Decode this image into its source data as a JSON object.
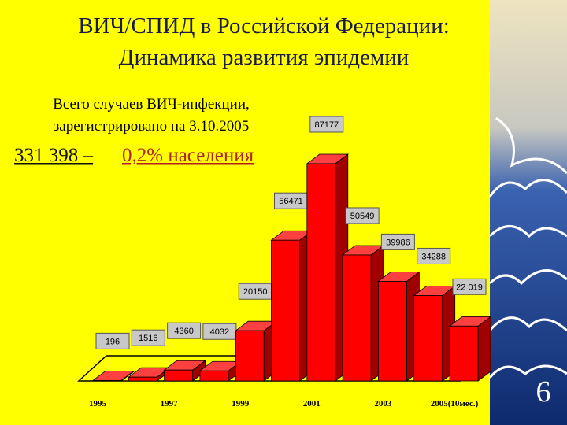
{
  "title_lines": [
    "ВИЧ/СПИД в Российской Федерации:",
    "Динамика развития эпидемии"
  ],
  "note_lines": [
    "Всего случаев ВИЧ-инфекции,",
    "зарегистрировано на 3.10.2005"
  ],
  "total": "331 398 –",
  "share": "0,2% населения",
  "slide_number": "6",
  "chart_data": {
    "type": "bar",
    "categories": [
      "1995",
      null,
      "1997",
      null,
      "1999",
      null,
      "2001",
      null,
      "2003",
      null,
      "2005(10мес.)"
    ],
    "values": [
      196,
      1516,
      4360,
      4032,
      20150,
      56471,
      87177,
      50549,
      39986,
      34288,
      22019
    ],
    "value_labels": [
      "196",
      "1516",
      "4360",
      "4032",
      "20150",
      "56471",
      "87177",
      "50549",
      "39986",
      "34288",
      "22 019"
    ],
    "color": "#ff0000"
  }
}
